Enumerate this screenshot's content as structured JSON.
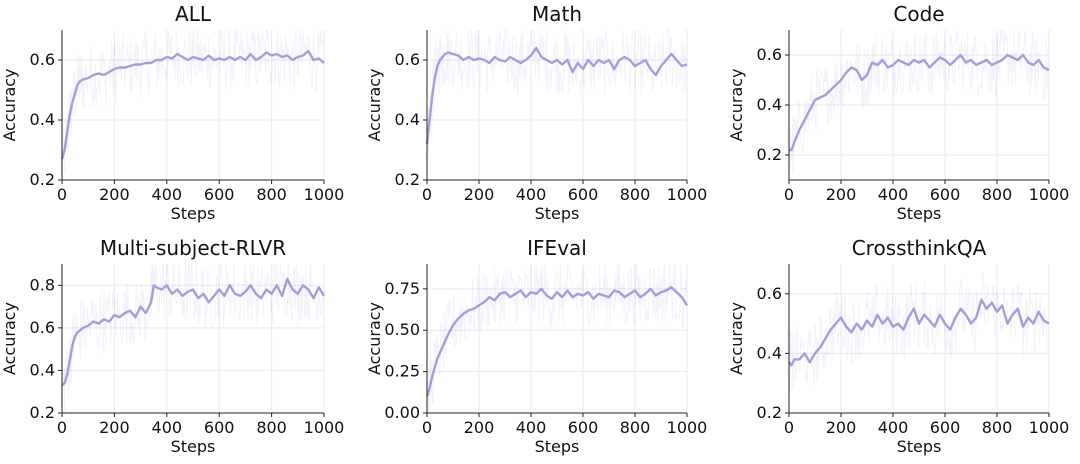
{
  "chart_data": [
    {
      "type": "line",
      "title": "ALL",
      "xlabel": "Steps",
      "ylabel": "Accuracy",
      "xlim": [
        0,
        1000
      ],
      "ylim": [
        0.2,
        0.7
      ],
      "xticks": [
        "0",
        "200",
        "400",
        "600",
        "800",
        "1000"
      ],
      "yticks": [
        "0.2",
        "0.4",
        "0.6"
      ],
      "ytick_values": [
        0.2,
        0.4,
        0.6
      ],
      "grid": true,
      "color": "#a99bd8",
      "series": [
        {
          "x": [
            0,
            10,
            20,
            30,
            40,
            50,
            60,
            70,
            80,
            100,
            120,
            140,
            160,
            180,
            200,
            220,
            240,
            260,
            280,
            300,
            320,
            340,
            360,
            380,
            400,
            420,
            440,
            460,
            480,
            500,
            520,
            540,
            560,
            580,
            600,
            620,
            640,
            660,
            680,
            700,
            720,
            740,
            760,
            780,
            800,
            820,
            840,
            860,
            880,
            900,
            920,
            940,
            960,
            980,
            1000
          ],
          "y": [
            0.27,
            0.3,
            0.36,
            0.42,
            0.46,
            0.49,
            0.52,
            0.53,
            0.535,
            0.54,
            0.55,
            0.555,
            0.55,
            0.56,
            0.57,
            0.575,
            0.575,
            0.58,
            0.585,
            0.585,
            0.59,
            0.59,
            0.6,
            0.6,
            0.61,
            0.605,
            0.62,
            0.61,
            0.6,
            0.61,
            0.605,
            0.6,
            0.615,
            0.6,
            0.605,
            0.6,
            0.61,
            0.6,
            0.61,
            0.6,
            0.62,
            0.6,
            0.61,
            0.625,
            0.615,
            0.62,
            0.61,
            0.615,
            0.6,
            0.61,
            0.615,
            0.63,
            0.6,
            0.605,
            0.59
          ]
        }
      ]
    },
    {
      "type": "line",
      "title": "Math",
      "xlabel": "Steps",
      "ylabel": "Accuracy",
      "xlim": [
        0,
        1000
      ],
      "ylim": [
        0.2,
        0.7
      ],
      "xticks": [
        "0",
        "200",
        "400",
        "600",
        "800",
        "1000"
      ],
      "yticks": [
        "0.2",
        "0.4",
        "0.6"
      ],
      "ytick_values": [
        0.2,
        0.4,
        0.6
      ],
      "grid": true,
      "color": "#a99bd8",
      "series": [
        {
          "x": [
            0,
            10,
            20,
            30,
            40,
            50,
            60,
            70,
            80,
            100,
            120,
            140,
            160,
            180,
            200,
            220,
            240,
            260,
            280,
            300,
            320,
            340,
            360,
            380,
            400,
            420,
            440,
            460,
            480,
            500,
            520,
            540,
            560,
            580,
            600,
            620,
            640,
            660,
            680,
            700,
            720,
            740,
            760,
            780,
            800,
            820,
            840,
            860,
            880,
            900,
            920,
            940,
            960,
            980,
            1000
          ],
          "y": [
            0.32,
            0.4,
            0.48,
            0.54,
            0.58,
            0.6,
            0.61,
            0.62,
            0.625,
            0.62,
            0.615,
            0.6,
            0.61,
            0.6,
            0.605,
            0.6,
            0.59,
            0.61,
            0.6,
            0.595,
            0.61,
            0.6,
            0.59,
            0.6,
            0.615,
            0.64,
            0.61,
            0.6,
            0.59,
            0.6,
            0.585,
            0.6,
            0.56,
            0.59,
            0.57,
            0.6,
            0.58,
            0.6,
            0.59,
            0.6,
            0.57,
            0.6,
            0.61,
            0.6,
            0.58,
            0.59,
            0.6,
            0.57,
            0.55,
            0.58,
            0.6,
            0.62,
            0.6,
            0.58,
            0.585
          ]
        }
      ]
    },
    {
      "type": "line",
      "title": "Code",
      "xlabel": "Steps",
      "ylabel": "Accuracy",
      "xlim": [
        0,
        1000
      ],
      "ylim": [
        0.1,
        0.7
      ],
      "xticks": [
        "0",
        "200",
        "400",
        "600",
        "800",
        "1000"
      ],
      "yticks": [
        "0.2",
        "0.4",
        "0.6"
      ],
      "ytick_values": [
        0.2,
        0.4,
        0.6
      ],
      "grid": true,
      "color": "#a99bd8",
      "series": [
        {
          "x": [
            0,
            10,
            20,
            40,
            60,
            80,
            100,
            120,
            140,
            160,
            180,
            200,
            220,
            240,
            260,
            280,
            300,
            320,
            340,
            360,
            380,
            400,
            420,
            440,
            460,
            480,
            500,
            520,
            540,
            560,
            580,
            600,
            620,
            640,
            660,
            680,
            700,
            720,
            740,
            760,
            780,
            800,
            820,
            840,
            860,
            880,
            900,
            920,
            940,
            960,
            980,
            1000
          ],
          "y": [
            0.22,
            0.22,
            0.25,
            0.3,
            0.34,
            0.38,
            0.42,
            0.43,
            0.44,
            0.46,
            0.48,
            0.5,
            0.53,
            0.55,
            0.54,
            0.5,
            0.52,
            0.57,
            0.56,
            0.58,
            0.55,
            0.56,
            0.58,
            0.57,
            0.56,
            0.58,
            0.57,
            0.58,
            0.55,
            0.57,
            0.59,
            0.58,
            0.56,
            0.58,
            0.6,
            0.57,
            0.58,
            0.56,
            0.57,
            0.58,
            0.56,
            0.57,
            0.58,
            0.6,
            0.59,
            0.58,
            0.6,
            0.57,
            0.56,
            0.58,
            0.55,
            0.54
          ]
        }
      ]
    },
    {
      "type": "line",
      "title": "Multi-subject-RLVR",
      "xlabel": "Steps",
      "ylabel": "Accuracy",
      "xlim": [
        0,
        1000
      ],
      "ylim": [
        0.2,
        0.9
      ],
      "xticks": [
        "0",
        "200",
        "400",
        "600",
        "800",
        "1000"
      ],
      "yticks": [
        "0.2",
        "0.4",
        "0.6",
        "0.8"
      ],
      "ytick_values": [
        0.2,
        0.4,
        0.6,
        0.8
      ],
      "grid": true,
      "color": "#a99bd8",
      "series": [
        {
          "x": [
            0,
            10,
            20,
            30,
            40,
            50,
            60,
            80,
            100,
            120,
            140,
            160,
            180,
            200,
            220,
            240,
            260,
            280,
            300,
            320,
            340,
            350,
            360,
            380,
            400,
            420,
            440,
            460,
            480,
            500,
            520,
            540,
            560,
            580,
            600,
            620,
            640,
            660,
            680,
            700,
            720,
            740,
            760,
            780,
            800,
            820,
            840,
            860,
            880,
            900,
            920,
            940,
            960,
            980,
            1000
          ],
          "y": [
            0.33,
            0.34,
            0.38,
            0.45,
            0.52,
            0.56,
            0.58,
            0.6,
            0.61,
            0.63,
            0.62,
            0.64,
            0.63,
            0.66,
            0.65,
            0.67,
            0.68,
            0.65,
            0.7,
            0.67,
            0.72,
            0.8,
            0.79,
            0.78,
            0.8,
            0.76,
            0.78,
            0.75,
            0.77,
            0.78,
            0.74,
            0.76,
            0.72,
            0.75,
            0.78,
            0.75,
            0.8,
            0.76,
            0.75,
            0.77,
            0.8,
            0.76,
            0.74,
            0.78,
            0.76,
            0.8,
            0.75,
            0.83,
            0.78,
            0.76,
            0.8,
            0.78,
            0.74,
            0.79,
            0.75
          ]
        }
      ]
    },
    {
      "type": "line",
      "title": "IFEval",
      "xlabel": "Steps",
      "ylabel": "Accuracy",
      "xlim": [
        0,
        1000
      ],
      "ylim": [
        0.0,
        0.9
      ],
      "xticks": [
        "0",
        "200",
        "400",
        "600",
        "800",
        "1000"
      ],
      "yticks": [
        "0.00",
        "0.25",
        "0.50",
        "0.75"
      ],
      "ytick_values": [
        0.0,
        0.25,
        0.5,
        0.75
      ],
      "grid": true,
      "color": "#a99bd8",
      "series": [
        {
          "x": [
            0,
            10,
            20,
            40,
            60,
            80,
            100,
            120,
            140,
            160,
            180,
            200,
            220,
            240,
            260,
            280,
            300,
            320,
            340,
            360,
            380,
            400,
            420,
            440,
            460,
            480,
            500,
            520,
            540,
            560,
            580,
            600,
            620,
            640,
            660,
            680,
            700,
            720,
            740,
            760,
            780,
            800,
            820,
            840,
            860,
            880,
            900,
            920,
            940,
            960,
            980,
            1000
          ],
          "y": [
            0.1,
            0.15,
            0.22,
            0.33,
            0.4,
            0.47,
            0.53,
            0.57,
            0.6,
            0.62,
            0.63,
            0.65,
            0.67,
            0.7,
            0.68,
            0.72,
            0.73,
            0.7,
            0.72,
            0.74,
            0.7,
            0.73,
            0.72,
            0.75,
            0.71,
            0.69,
            0.73,
            0.7,
            0.74,
            0.7,
            0.72,
            0.71,
            0.73,
            0.69,
            0.72,
            0.71,
            0.7,
            0.74,
            0.73,
            0.7,
            0.72,
            0.74,
            0.7,
            0.72,
            0.75,
            0.71,
            0.73,
            0.74,
            0.76,
            0.73,
            0.7,
            0.65
          ]
        }
      ]
    },
    {
      "type": "line",
      "title": "CrossthinkQA",
      "xlabel": "Steps",
      "ylabel": "Accuracy",
      "xlim": [
        0,
        1000
      ],
      "ylim": [
        0.2,
        0.7
      ],
      "xticks": [
        "0",
        "200",
        "400",
        "600",
        "800",
        "1000"
      ],
      "yticks": [
        "0.2",
        "0.4",
        "0.6"
      ],
      "ytick_values": [
        0.2,
        0.4,
        0.6
      ],
      "grid": true,
      "color": "#a99bd8",
      "series": [
        {
          "x": [
            0,
            10,
            20,
            40,
            60,
            80,
            100,
            120,
            140,
            160,
            180,
            200,
            220,
            240,
            260,
            280,
            300,
            320,
            340,
            360,
            380,
            400,
            420,
            440,
            460,
            480,
            500,
            520,
            540,
            560,
            580,
            600,
            620,
            640,
            660,
            680,
            700,
            720,
            740,
            760,
            780,
            800,
            820,
            840,
            860,
            880,
            900,
            920,
            940,
            960,
            980,
            1000
          ],
          "y": [
            0.37,
            0.36,
            0.38,
            0.38,
            0.4,
            0.37,
            0.4,
            0.42,
            0.45,
            0.48,
            0.5,
            0.52,
            0.49,
            0.47,
            0.5,
            0.48,
            0.51,
            0.49,
            0.53,
            0.5,
            0.52,
            0.49,
            0.5,
            0.48,
            0.52,
            0.55,
            0.5,
            0.53,
            0.51,
            0.49,
            0.53,
            0.5,
            0.48,
            0.52,
            0.55,
            0.53,
            0.5,
            0.52,
            0.58,
            0.55,
            0.57,
            0.54,
            0.56,
            0.5,
            0.53,
            0.55,
            0.49,
            0.52,
            0.5,
            0.54,
            0.51,
            0.5
          ]
        }
      ]
    }
  ]
}
